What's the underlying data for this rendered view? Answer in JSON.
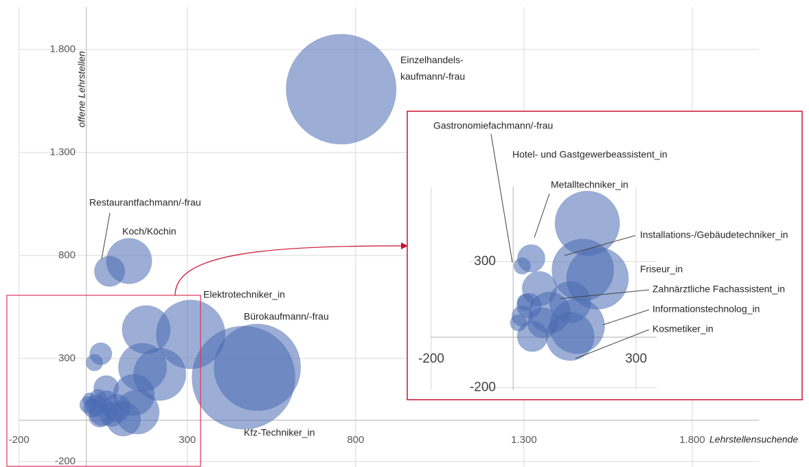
{
  "chart_data": [
    {
      "type": "bubble",
      "x_label": "Lehrstellensuchende",
      "y_label": "offene Lehrstellen",
      "xlim": [
        -230,
        2000
      ],
      "ylim": [
        -220,
        2000
      ],
      "xticks": [
        -200,
        300,
        800,
        {
          "value": 1300,
          "label": "1.300"
        },
        {
          "value": 1800,
          "label": "1.800"
        }
      ],
      "yticks": [
        -200,
        300,
        800,
        {
          "value": 1300,
          "label": "1.300"
        },
        {
          "value": 1800,
          "label": "1.800"
        }
      ],
      "grid": true,
      "color": "#4a6cb3",
      "labels": [
        "Einzelhandels-\nkaufmann/-frau",
        "Kfz-Techniker_in",
        "Bürokaufmann/-frau",
        "Elektrotechniker_in",
        null,
        null,
        null,
        "Koch/Köchin",
        null,
        null,
        null,
        "Restaurantfachmann/-frau",
        null,
        null,
        null,
        null,
        null,
        null,
        null,
        null,
        null,
        null,
        null,
        null,
        null
      ],
      "x": [
        757,
        467,
        508,
        310,
        218,
        178,
        167,
        127,
        151,
        141,
        110,
        69,
        49,
        90,
        59,
        75,
        43,
        60,
        40,
        29,
        20,
        24,
        35,
        10,
        5
      ],
      "y": [
        1607,
        207,
        257,
        417,
        223,
        440,
        257,
        773,
        40,
        123,
        7,
        723,
        40,
        60,
        157,
        30,
        323,
        90,
        20,
        73,
        60,
        280,
        110,
        100,
        75
      ],
      "sizes": [
        1600,
        1406,
        992,
        625,
        361,
        306,
        306,
        272,
        256,
        225,
        156,
        121,
        100,
        100,
        81,
        81,
        64,
        64,
        64,
        56,
        49,
        36,
        36,
        25,
        36
      ]
    },
    {
      "type": "bubble",
      "xlim": [
        -210,
        350
      ],
      "ylim": [
        -210,
        600
      ],
      "xticks": [
        -200,
        300
      ],
      "yticks": [
        -200,
        300
      ],
      "grid": true,
      "color": "#4a6cb3",
      "labels": [
        "Metalltechniker_in",
        "Installations-/Gebäudetechniker_in",
        "Friseur_in",
        "Informationstechnolog_in",
        "Kosmetiker_in",
        "Zahnärztliche Fachassistent_in",
        null,
        null,
        null,
        null,
        "Hotel- und Gastgewerbeassistent_in",
        null,
        null,
        null,
        "Gastronomiefachmann/-frau",
        null
      ],
      "x": [
        181,
        170,
        206,
        156,
        139,
        139,
        89,
        64,
        72,
        47,
        44,
        39,
        22,
        13,
        22,
        30
      ],
      "y": [
        452,
        267,
        234,
        44,
        3,
        139,
        98,
        193,
        57,
        3,
        313,
        125,
        84,
        57,
        283,
        139
      ],
      "sizes": [
        552,
        506,
        506,
        400,
        306,
        225,
        225,
        156,
        121,
        121,
        100,
        81,
        56,
        36,
        36,
        36
      ]
    }
  ]
}
